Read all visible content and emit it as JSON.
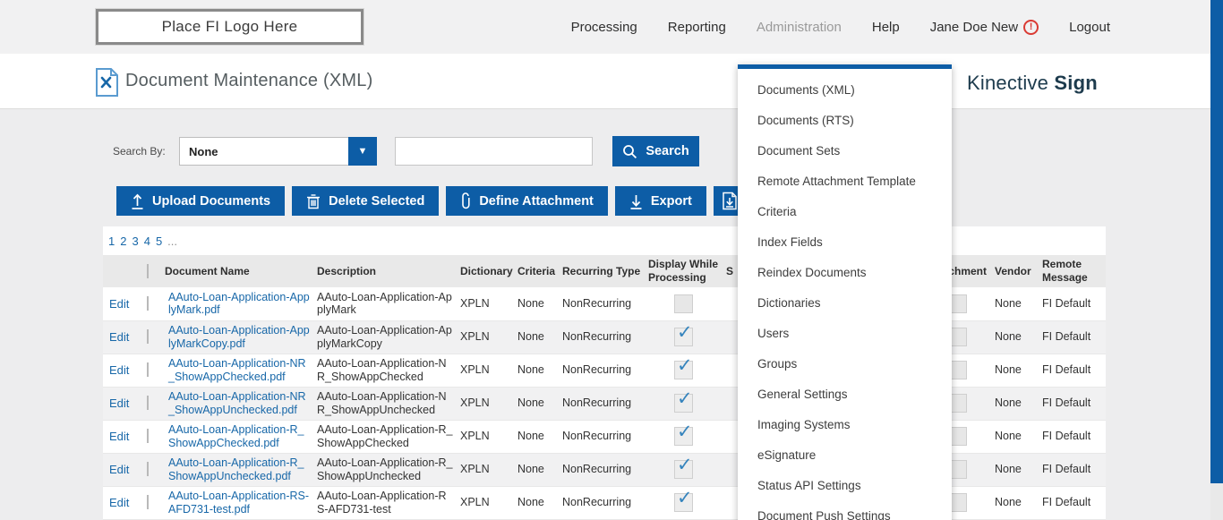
{
  "brand": {
    "logo_placeholder": "Place FI Logo Here",
    "product_name": "Kinective ",
    "product_suffix": "Sign"
  },
  "nav": {
    "items": [
      {
        "label": "Processing"
      },
      {
        "label": "Reporting"
      },
      {
        "label": "Administration"
      },
      {
        "label": "Help"
      },
      {
        "label": "Jane Doe New"
      },
      {
        "label": "Logout"
      }
    ],
    "warning_glyph": "!"
  },
  "page": {
    "title": "Document Maintenance (XML)"
  },
  "search": {
    "label": "Search By:",
    "selected_option": "None",
    "input_value": "",
    "button_label": "Search"
  },
  "toolbar": {
    "upload_label": "Upload Documents",
    "delete_label": "Delete Selected",
    "attachment_label": "Define Attachment",
    "export_label": "Export"
  },
  "pagination": {
    "pages": [
      "1",
      "2",
      "3",
      "4",
      "5"
    ],
    "ellipsis": "..."
  },
  "admin_menu": {
    "items": [
      "Documents (XML)",
      "Documents (RTS)",
      "Document Sets",
      "Remote Attachment Template",
      "Criteria",
      "Index Fields",
      "Reindex Documents",
      "Dictionaries",
      "Users",
      "Groups",
      "General Settings",
      "Imaging Systems",
      "eSignature",
      "Status API Settings",
      "Document Push Settings"
    ]
  },
  "table": {
    "columns": {
      "document_name": "Document Name",
      "description": "Description",
      "dictionary": "Dictionary",
      "criteria": "Criteria",
      "recurring_type": "Recurring Type",
      "display_while_processing": "Display While Processing",
      "signature_fragment": "S",
      "attachment": "Attachment",
      "vendor": "Vendor",
      "remote_message": "Remote Message"
    },
    "edit_label": "Edit",
    "rows": [
      {
        "document_name": "AAuto-Loan-Application-ApplyMark.pdf",
        "description": "AAuto-Loan-Application-ApplyMark",
        "dictionary": "XPLN",
        "criteria": "None",
        "recurring_type": "NonRecurring",
        "display_while_processing": false,
        "vendor": "None",
        "remote_message": "FI Default"
      },
      {
        "document_name": "AAuto-Loan-Application-ApplyMarkCopy.pdf",
        "description": "AAuto-Loan-Application-ApplyMarkCopy",
        "dictionary": "XPLN",
        "criteria": "None",
        "recurring_type": "NonRecurring",
        "display_while_processing": true,
        "vendor": "None",
        "remote_message": "FI Default"
      },
      {
        "document_name": "AAuto-Loan-Application-NR_ShowAppChecked.pdf",
        "description": "AAuto-Loan-Application-NR_ShowAppChecked",
        "dictionary": "XPLN",
        "criteria": "None",
        "recurring_type": "NonRecurring",
        "display_while_processing": true,
        "vendor": "None",
        "remote_message": "FI Default"
      },
      {
        "document_name": "AAuto-Loan-Application-NR_ShowAppUnchecked.pdf",
        "description": "AAuto-Loan-Application-NR_ShowAppUnchecked",
        "dictionary": "XPLN",
        "criteria": "None",
        "recurring_type": "NonRecurring",
        "display_while_processing": true,
        "vendor": "None",
        "remote_message": "FI Default"
      },
      {
        "document_name": "AAuto-Loan-Application-R_ShowAppChecked.pdf",
        "description": "AAuto-Loan-Application-R_ShowAppChecked",
        "dictionary": "XPLN",
        "criteria": "None",
        "recurring_type": "NonRecurring",
        "display_while_processing": true,
        "vendor": "None",
        "remote_message": "FI Default"
      },
      {
        "document_name": "AAuto-Loan-Application-R_ShowAppUnchecked.pdf",
        "description": "AAuto-Loan-Application-R_ShowAppUnchecked",
        "dictionary": "XPLN",
        "criteria": "None",
        "recurring_type": "NonRecurring",
        "display_while_processing": true,
        "vendor": "None",
        "remote_message": "FI Default"
      },
      {
        "document_name": "AAuto-Loan-Application-RS-AFD731-test.pdf",
        "description": "AAuto-Loan-Application-RS-AFD731-test",
        "dictionary": "XPLN",
        "criteria": "None",
        "recurring_type": "NonRecurring",
        "display_while_processing": true,
        "vendor": "None",
        "remote_message": "FI Default"
      }
    ]
  },
  "colors": {
    "accent": "#0d5da6",
    "link": "#1767a8",
    "warning": "#da3b34",
    "brand_text": "#1d3b4d",
    "check": "#3584bd"
  }
}
